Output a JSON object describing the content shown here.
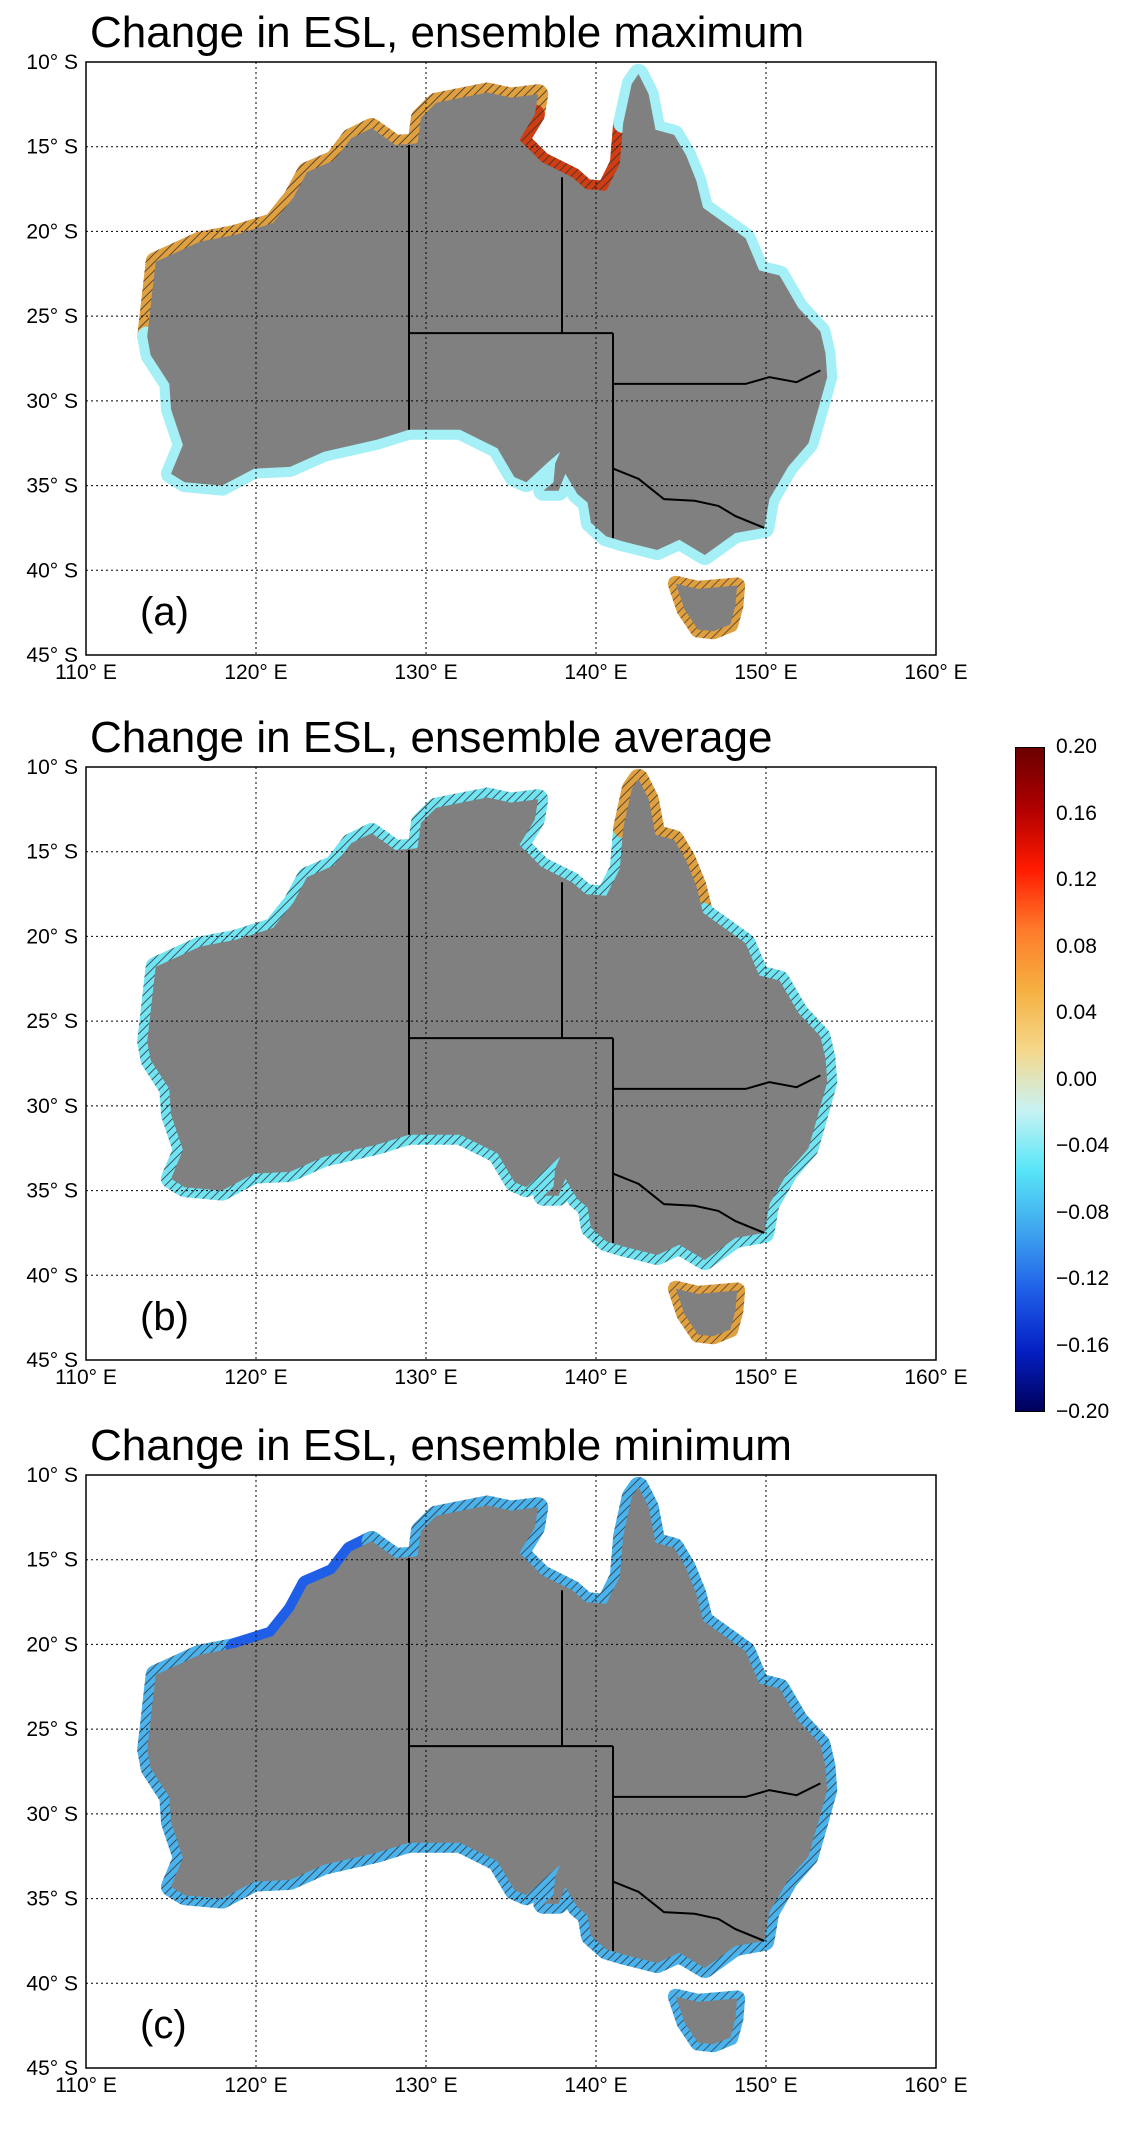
{
  "panels": [
    {
      "id": "a",
      "title": "Change in ESL, ensemble maximum",
      "label": "(a)"
    },
    {
      "id": "b",
      "title": "Change in ESL, ensemble average",
      "label": "(b)"
    },
    {
      "id": "c",
      "title": "Change in ESL, ensemble minimum",
      "label": "(c)"
    }
  ],
  "axes": {
    "lon_ticks": [
      "110° E",
      "120° E",
      "130° E",
      "140° E",
      "150° E",
      "160° E"
    ],
    "lat_ticks": [
      "10° S",
      "15° S",
      "20° S",
      "25° S",
      "30° S",
      "35° S",
      "40° S",
      "45° S"
    ],
    "lon_range": [
      110,
      160
    ],
    "lat_range": [
      -45,
      -10
    ],
    "grid": "dotted"
  },
  "colorbar": {
    "range": [
      -0.2,
      0.2
    ],
    "ticks": [
      "0.20",
      "0.16",
      "0.12",
      "0.08",
      "0.04",
      "0.00",
      "−0.04",
      "−0.08",
      "−0.12",
      "−0.16",
      "−0.20"
    ],
    "colors": [
      "#6a0000",
      "#b00000",
      "#ff1a00",
      "#ff7a2a",
      "#f5b040",
      "#f5d78a",
      "#c9f2f2",
      "#58e6f8",
      "#3fa6ef",
      "#1f5fe8",
      "#0420c4",
      "#00005a"
    ]
  },
  "colors": {
    "land": "#808080",
    "coast_max": "#e0a040",
    "coast_avg": "#70e4f2",
    "coast_min": "#4ab2ec",
    "coast_light": "#a4f0f6",
    "gulf_red": "#d03d12",
    "hatch": "#333333"
  }
}
